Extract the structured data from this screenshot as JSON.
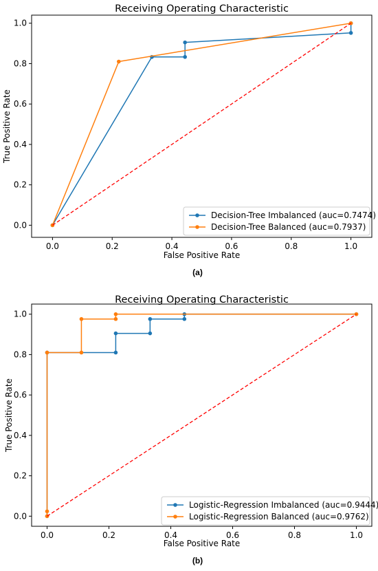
{
  "chart_data": [
    {
      "type": "line",
      "title": "Receiving Operating Characteristic",
      "xlabel": "False Positive Rate",
      "ylabel": "True Positive Rate",
      "xlim": [
        -0.07,
        1.07
      ],
      "ylim": [
        -0.06,
        1.04
      ],
      "xticks": [
        0.0,
        0.2,
        0.4,
        0.6,
        0.8,
        1.0
      ],
      "yticks": [
        0.0,
        0.2,
        0.4,
        0.6,
        0.8,
        1.0
      ],
      "xtick_labels": [
        "0.0",
        "0.2",
        "0.4",
        "0.6",
        "0.8",
        "1.0"
      ],
      "ytick_labels": [
        "0.0",
        "0.2",
        "0.4",
        "0.6",
        "0.8",
        "1.0"
      ],
      "grid": false,
      "legend_position": "lower-right",
      "panel_label": "(a)",
      "series": [
        {
          "name": "Decision-Tree Imbalanced  (auc=0.7474)",
          "color": "#1f77b4",
          "marker": "circle",
          "x": [
            0.0,
            0.333,
            0.444,
            0.444,
            1.0,
            1.0
          ],
          "y": [
            0.0,
            0.833,
            0.833,
            0.905,
            0.952,
            1.0
          ]
        },
        {
          "name": "Decision-Tree Balanced  (auc=0.7937)",
          "color": "#ff7f0e",
          "marker": "circle",
          "x": [
            0.0,
            0.222,
            1.0
          ],
          "y": [
            0.0,
            0.81,
            1.0
          ]
        }
      ],
      "reference_line": {
        "x": [
          0,
          1
        ],
        "y": [
          0,
          1
        ],
        "color": "#ff0000",
        "style": "dashed"
      }
    },
    {
      "type": "line",
      "title": "Receiving Operating Characteristic",
      "xlabel": "False Positive Rate",
      "ylabel": "True Positive Rate",
      "xlim": [
        -0.05,
        1.05
      ],
      "ylim": [
        -0.05,
        1.05
      ],
      "xticks": [
        0.0,
        0.2,
        0.4,
        0.6,
        0.8,
        1.0
      ],
      "yticks": [
        0.0,
        0.2,
        0.4,
        0.6,
        0.8,
        1.0
      ],
      "xtick_labels": [
        "0.0",
        "0.2",
        "0.4",
        "0.6",
        "0.8",
        "1.0"
      ],
      "ytick_labels": [
        "0.0",
        "0.2",
        "0.4",
        "0.6",
        "0.8",
        "1.0"
      ],
      "grid": false,
      "legend_position": "lower-right",
      "panel_label": "(b)",
      "series": [
        {
          "name": "Logistic-Regression Imbalanced  (auc=0.9444)",
          "color": "#1f77b4",
          "marker": "circle",
          "x": [
            0.0,
            0.0,
            0.222,
            0.222,
            0.333,
            0.333,
            0.444,
            0.444,
            1.0
          ],
          "y": [
            0.0,
            0.81,
            0.81,
            0.905,
            0.905,
            0.976,
            0.976,
            1.0,
            1.0
          ]
        },
        {
          "name": "Logistic-Regression Balanced  (auc=0.9762)",
          "color": "#ff7f0e",
          "marker": "circle",
          "x": [
            0.0,
            0.0,
            0.0,
            0.111,
            0.111,
            0.222,
            0.222,
            1.0
          ],
          "y": [
            0.0,
            0.024,
            0.81,
            0.81,
            0.976,
            0.976,
            1.0,
            1.0
          ]
        }
      ],
      "reference_line": {
        "x": [
          0,
          1
        ],
        "y": [
          0,
          1
        ],
        "color": "#ff0000",
        "style": "dashed"
      }
    }
  ]
}
